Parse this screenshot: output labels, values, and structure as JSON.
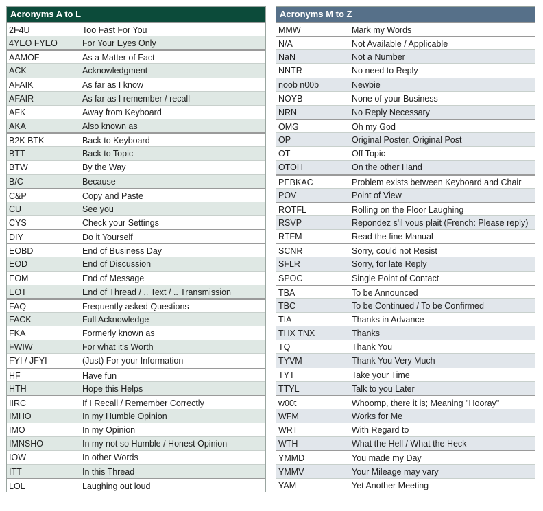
{
  "left": {
    "title": "Acronyms A to L",
    "groups": [
      [
        [
          "2F4U",
          "Too Fast For You"
        ],
        [
          "4YEO FYEO",
          "For Your Eyes Only"
        ]
      ],
      [
        [
          "AAMOF",
          "As a Matter of Fact"
        ],
        [
          "ACK",
          "Acknowledgment"
        ],
        [
          "AFAIK",
          "As far as I know"
        ],
        [
          "AFAIR",
          "As far as I remember / recall"
        ],
        [
          "AFK",
          "Away from Keyboard"
        ],
        [
          "AKA",
          "Also known as"
        ]
      ],
      [
        [
          "B2K BTK",
          "Back to Keyboard"
        ],
        [
          "BTT",
          "Back to Topic"
        ],
        [
          "BTW",
          "By the Way"
        ],
        [
          "B/C",
          "Because"
        ]
      ],
      [
        [
          "C&P",
          "Copy and Paste"
        ],
        [
          "CU",
          "See you"
        ],
        [
          "CYS",
          "Check your Settings"
        ]
      ],
      [
        [
          "DIY",
          "Do it Yourself"
        ]
      ],
      [
        [
          "EOBD",
          "End of Business Day"
        ],
        [
          "EOD",
          "End of Discussion"
        ],
        [
          "EOM",
          "End of Message"
        ],
        [
          "EOT",
          "End of Thread / .. Text / .. Transmission"
        ]
      ],
      [
        [
          "FAQ",
          "Frequently asked Questions"
        ],
        [
          "FACK",
          "Full Acknowledge"
        ],
        [
          "FKA",
          "Formerly known as"
        ],
        [
          "FWIW",
          "For what it's Worth"
        ],
        [
          "FYI / JFYI",
          "(Just) For your Information"
        ]
      ],
      [
        [
          "HF",
          "Have fun"
        ],
        [
          "HTH",
          "Hope this Helps"
        ]
      ],
      [
        [
          "IIRC",
          "If I Recall / Remember Correctly"
        ],
        [
          "IMHO",
          "In my Humble Opinion"
        ],
        [
          "IMO",
          "In my Opinion"
        ],
        [
          "IMNSHO",
          "In my not so Humble / Honest Opinion"
        ],
        [
          "IOW",
          "In other Words"
        ],
        [
          "ITT",
          "In this Thread"
        ]
      ],
      [
        [
          "LOL",
          "Laughing out loud"
        ]
      ]
    ]
  },
  "right": {
    "title": "Acronyms M to Z",
    "groups": [
      [
        [
          "MMW",
          "Mark my Words"
        ]
      ],
      [
        [
          "N/A",
          "Not Available / Applicable"
        ],
        [
          "NaN",
          "Not a Number"
        ],
        [
          "NNTR",
          "No need to Reply"
        ],
        [
          "noob n00b",
          "Newbie"
        ],
        [
          "NOYB",
          "None of your Business"
        ],
        [
          "NRN",
          "No Reply Necessary"
        ]
      ],
      [
        [
          "OMG",
          "Oh my God"
        ],
        [
          "OP",
          "Original Poster, Original Post"
        ],
        [
          "OT",
          "Off Topic"
        ],
        [
          "OTOH",
          "On the other Hand"
        ]
      ],
      [
        [
          "PEBKAC",
          "Problem exists between Keyboard and Chair"
        ],
        [
          "POV",
          "Point of View"
        ]
      ],
      [
        [
          "ROTFL",
          "Rolling on the Floor Laughing"
        ],
        [
          "RSVP",
          "Repondez s'il vous plait (French: Please reply)"
        ],
        [
          "RTFM",
          "Read the fine Manual"
        ]
      ],
      [
        [
          "SCNR",
          "Sorry, could not Resist"
        ],
        [
          "SFLR",
          "Sorry, for late Reply"
        ],
        [
          "SPOC",
          "Single Point of Contact"
        ]
      ],
      [
        [
          "TBA",
          "To be Announced"
        ],
        [
          "TBC",
          "To be Continued / To be Confirmed"
        ],
        [
          "TIA",
          "Thanks in Advance"
        ],
        [
          "THX TNX",
          "Thanks"
        ],
        [
          "TQ",
          "Thank You"
        ],
        [
          "TYVM",
          "Thank You Very Much"
        ],
        [
          "TYT",
          "Take your Time"
        ],
        [
          "TTYL",
          "Talk to you Later"
        ]
      ],
      [
        [
          "w00t",
          "Whoomp, there it is; Meaning \"Hooray\""
        ],
        [
          "WFM",
          "Works for Me"
        ],
        [
          "WRT",
          "With Regard to"
        ],
        [
          "WTH",
          "What the Hell / What the Heck"
        ]
      ],
      [
        [
          "YMMD",
          "You made my Day"
        ],
        [
          "YMMV",
          "Your Mileage may vary"
        ],
        [
          "YAM",
          "Yet Another Meeting"
        ]
      ]
    ]
  }
}
